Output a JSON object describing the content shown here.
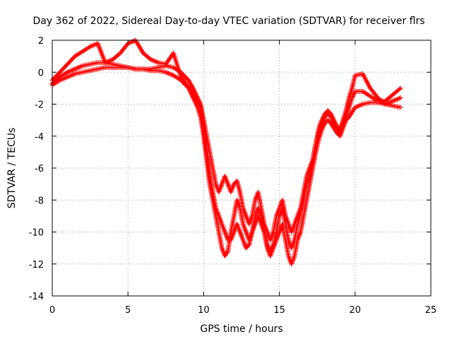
{
  "chart_data": {
    "type": "scatter",
    "title": "Day 362 of 2022, Sidereal Day-to-day VTEC variation (SDTVAR) for receiver flrs",
    "xlabel": "GPS time / hours",
    "ylabel": "SDTVAR / TECUs",
    "xlim": [
      0,
      25
    ],
    "ylim": [
      -14,
      2
    ],
    "x_ticks": [
      0,
      5,
      10,
      15,
      20,
      25
    ],
    "y_ticks": [
      2,
      0,
      -2,
      -4,
      -6,
      -8,
      -10,
      -12,
      -14
    ],
    "grid": true,
    "legend": "none",
    "marker": "+",
    "color": "#ff0000",
    "series": [
      {
        "x": [
          0.0,
          0.5,
          1.0,
          1.5,
          2.0,
          2.5,
          3.0,
          3.5,
          4.0,
          4.5,
          5.0,
          5.5,
          6.0,
          6.5,
          7.0,
          7.5,
          8.0,
          8.5,
          9.0,
          9.3,
          9.6,
          9.8,
          10.0,
          10.2,
          10.4,
          10.6,
          10.8,
          11.0,
          11.2,
          11.4,
          11.6,
          11.8,
          12.0,
          12.2,
          12.4,
          12.6,
          12.8,
          13.0,
          13.2,
          13.4,
          13.6,
          13.8,
          14.0,
          14.2,
          14.4,
          14.6,
          14.8,
          15.0,
          15.2,
          15.4,
          15.6,
          15.8,
          16.0,
          16.2,
          16.4,
          16.6,
          16.8,
          17.0,
          17.2,
          17.4,
          17.6,
          17.8,
          18.0,
          18.2,
          18.4,
          18.6,
          18.8,
          19.0,
          19.2,
          19.4,
          19.6,
          19.8,
          20.0,
          20.5,
          21.0,
          21.5,
          22.0,
          22.5,
          23.0
        ],
        "y": [
          -0.7,
          -0.3,
          0.0,
          0.2,
          0.4,
          0.5,
          0.6,
          0.6,
          0.5,
          0.4,
          0.3,
          0.2,
          0.2,
          0.1,
          0.1,
          0.0,
          -0.2,
          -0.5,
          -1.0,
          -1.6,
          -2.2,
          -2.8,
          -4.0,
          -5.5,
          -7.0,
          -8.0,
          -9.0,
          -10.0,
          -11.0,
          -11.5,
          -11.2,
          -10.0,
          -9.0,
          -8.0,
          -8.5,
          -9.5,
          -10.0,
          -10.5,
          -10.0,
          -9.0,
          -8.5,
          -9.0,
          -10.0,
          -11.0,
          -11.5,
          -11.0,
          -10.5,
          -10.0,
          -9.5,
          -10.5,
          -11.5,
          -12.0,
          -11.5,
          -10.5,
          -10.0,
          -9.0,
          -8.0,
          -7.0,
          -6.0,
          -5.0,
          -4.2,
          -3.6,
          -3.2,
          -3.0,
          -3.2,
          -3.5,
          -3.8,
          -4.0,
          -3.5,
          -3.0,
          -2.8,
          -2.5,
          -2.2,
          -2.0,
          -1.9,
          -1.9,
          -2.0,
          -2.1,
          -2.2
        ]
      },
      {
        "x": [
          0.0,
          0.5,
          1.0,
          1.5,
          2.0,
          2.5,
          3.0,
          3.5,
          4.0,
          4.5,
          5.0,
          5.5,
          6.0,
          6.5,
          7.0,
          7.5,
          8.0,
          8.5,
          9.0,
          9.3,
          9.6,
          9.8,
          10.0,
          10.2,
          10.4,
          10.6,
          10.8,
          11.0,
          11.2,
          11.4,
          11.6,
          11.8,
          12.0,
          12.2,
          12.4,
          12.6,
          12.8,
          13.0,
          13.2,
          13.4,
          13.6,
          13.8,
          14.0,
          14.2,
          14.4,
          14.6,
          14.8,
          15.0,
          15.2,
          15.4,
          15.6,
          15.8,
          16.0,
          16.2,
          16.4,
          16.6,
          16.8,
          17.0,
          17.2,
          17.4,
          17.6,
          17.8,
          18.0,
          18.2,
          18.4,
          18.6,
          18.8,
          19.0,
          19.2,
          19.4,
          19.6,
          19.8,
          20.0,
          20.5,
          21.0,
          21.5,
          22.0,
          22.5,
          23.0
        ],
        "y": [
          -0.8,
          -0.5,
          -0.3,
          -0.1,
          0.0,
          0.1,
          0.2,
          0.3,
          0.3,
          0.3,
          0.3,
          0.2,
          0.2,
          0.2,
          0.3,
          0.4,
          0.3,
          0.0,
          -0.5,
          -1.0,
          -1.6,
          -2.0,
          -3.0,
          -4.0,
          -5.0,
          -6.0,
          -7.0,
          -7.5,
          -7.0,
          -6.5,
          -7.0,
          -7.5,
          -7.0,
          -6.8,
          -7.5,
          -8.5,
          -9.0,
          -9.5,
          -9.0,
          -8.0,
          -7.5,
          -8.5,
          -9.5,
          -10.0,
          -10.5,
          -10.0,
          -9.0,
          -8.5,
          -8.0,
          -9.0,
          -9.5,
          -10.0,
          -9.5,
          -9.0,
          -8.5,
          -7.5,
          -6.5,
          -6.0,
          -5.5,
          -4.5,
          -3.5,
          -3.0,
          -2.6,
          -2.4,
          -2.6,
          -3.0,
          -3.4,
          -3.6,
          -3.0,
          -2.4,
          -1.6,
          -1.0,
          -0.2,
          -0.1,
          -1.0,
          -1.6,
          -2.0,
          -1.8,
          -1.6
        ]
      },
      {
        "x": [
          0.0,
          0.5,
          1.0,
          1.5,
          2.0,
          2.5,
          3.0,
          3.5,
          4.0,
          4.5,
          5.0,
          5.5,
          6.0,
          6.5,
          7.0,
          7.5,
          8.0,
          8.5,
          9.0,
          9.3,
          9.6,
          9.8,
          10.0,
          10.2,
          10.4,
          10.6,
          10.8,
          11.0,
          11.2,
          11.4,
          11.6,
          11.8,
          12.0,
          12.2,
          12.4,
          12.6,
          12.8,
          13.0,
          13.2,
          13.4,
          13.6,
          13.8,
          14.0,
          14.2,
          14.4,
          14.6,
          14.8,
          15.0,
          15.2,
          15.4,
          15.6,
          15.8,
          16.0,
          16.2,
          16.4,
          16.6,
          16.8,
          17.0,
          17.2,
          17.4,
          17.6,
          17.8,
          18.0,
          18.2,
          18.4,
          18.6,
          18.8,
          19.0,
          19.2,
          19.4,
          19.6,
          19.8,
          20.0,
          20.5,
          21.0,
          21.5,
          22.0,
          22.5,
          23.0
        ],
        "y": [
          -0.5,
          0.0,
          0.5,
          1.0,
          1.3,
          1.6,
          1.8,
          0.6,
          0.8,
          1.2,
          1.8,
          2.0,
          1.2,
          0.8,
          0.6,
          0.5,
          1.2,
          -0.3,
          -0.9,
          -1.4,
          -1.8,
          -2.2,
          -3.5,
          -5.0,
          -6.5,
          -7.5,
          -8.5,
          -9.0,
          -9.5,
          -10.0,
          -10.5,
          -10.5,
          -10.0,
          -9.5,
          -10.0,
          -10.5,
          -11.0,
          -10.8,
          -10.0,
          -9.5,
          -9.0,
          -9.5,
          -10.0,
          -10.8,
          -11.2,
          -10.8,
          -10.0,
          -9.0,
          -8.5,
          -9.5,
          -10.5,
          -11.0,
          -10.5,
          -9.5,
          -8.8,
          -8.0,
          -7.0,
          -6.5,
          -5.5,
          -4.5,
          -3.8,
          -3.3,
          -2.8,
          -2.6,
          -2.8,
          -3.2,
          -3.6,
          -3.8,
          -3.2,
          -2.8,
          -2.2,
          -1.6,
          -1.2,
          -1.2,
          -1.5,
          -1.8,
          -1.8,
          -1.4,
          -1.0
        ]
      }
    ]
  }
}
